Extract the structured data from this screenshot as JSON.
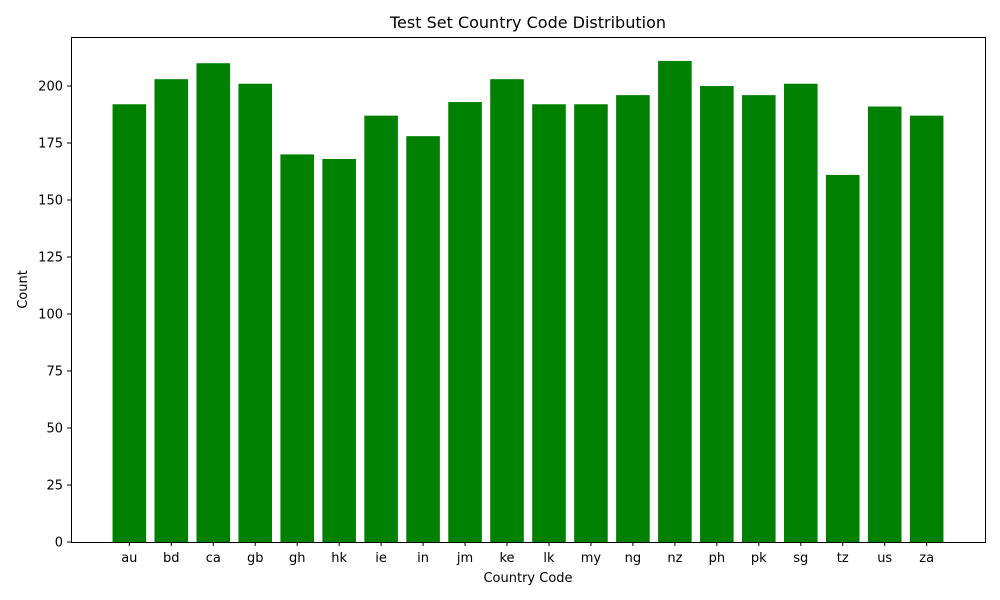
{
  "chart_data": {
    "type": "bar",
    "title": "Test Set Country Code Distribution",
    "xlabel": "Country Code",
    "ylabel": "Count",
    "categories": [
      "au",
      "bd",
      "ca",
      "gb",
      "gh",
      "hk",
      "ie",
      "in",
      "jm",
      "ke",
      "lk",
      "my",
      "ng",
      "nz",
      "ph",
      "pk",
      "sg",
      "tz",
      "us",
      "za"
    ],
    "values": [
      192,
      203,
      210,
      201,
      170,
      168,
      187,
      178,
      193,
      203,
      192,
      192,
      196,
      211,
      200,
      196,
      201,
      161,
      191,
      187
    ],
    "ylim": [
      0,
      221.5
    ],
    "yticks": [
      0,
      25,
      50,
      75,
      100,
      125,
      150,
      175,
      200
    ],
    "grid": false,
    "bar_color": "#008000"
  }
}
